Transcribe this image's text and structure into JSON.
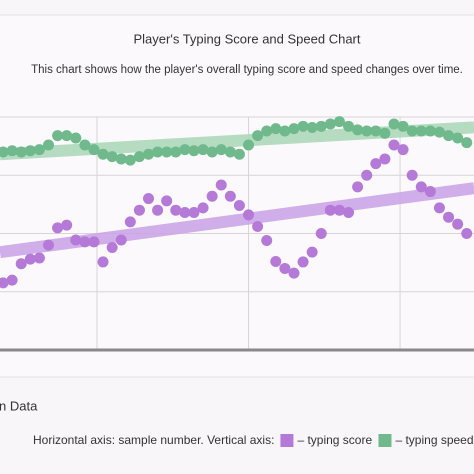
{
  "chart_data": {
    "type": "scatter",
    "title": "Player's Typing Score and Speed Chart",
    "subtitle": "This chart shows how the player's overall typing score and speed changes over time.",
    "caption": "Horizontal axis: sample number. Vertical axis:",
    "data_toggle": "n Data",
    "trendline": true,
    "x": [
      19,
      22,
      25,
      28,
      31,
      34,
      37,
      40,
      43,
      46,
      49,
      52,
      55,
      58,
      61,
      64,
      67,
      70,
      73,
      76,
      79,
      82,
      85,
      88,
      91,
      94,
      97,
      100,
      103,
      106,
      109,
      112,
      115,
      118,
      121,
      124,
      127,
      130,
      133,
      136,
      139,
      142,
      145,
      148,
      151,
      154,
      157,
      160,
      163,
      166,
      169,
      172
    ],
    "series": [
      {
        "name": "– typing score",
        "color": "#b57ad8",
        "trend_color": "#c9a2e6",
        "values": [
          28.8,
          30,
          37,
          39,
          39.5,
          45,
          52.4,
          53.6,
          47.2,
          46.4,
          46.4,
          37.8,
          44,
          47.2,
          55,
          60,
          65,
          60,
          64,
          60,
          59,
          59,
          61,
          66,
          70.8,
          66,
          62,
          58,
          53,
          47,
          38,
          35,
          33,
          37.8,
          42,
          50,
          60,
          60,
          59,
          70,
          75,
          80,
          82,
          88,
          86,
          75,
          70,
          68,
          61,
          57,
          54,
          50
        ]
      },
      {
        "name": "– typing speed.",
        "color": "#6fb98c",
        "trend_color": "#a9d7b8",
        "values": [
          85,
          85.5,
          85,
          85.5,
          86,
          88,
          92,
          92,
          91,
          88,
          86,
          84,
          83,
          82,
          81.5,
          83,
          84,
          85,
          85,
          85,
          86,
          85.5,
          86,
          85,
          86,
          85,
          84,
          88,
          92,
          94,
          95,
          94,
          95,
          96,
          95.5,
          96,
          97,
          98,
          96,
          94.5,
          94,
          94,
          93,
          97,
          96,
          94,
          94,
          94,
          93.5,
          92,
          91,
          89
        ]
      }
    ],
    "xlim": [
      18,
      174.4
    ],
    "xticks": [
      50,
      100,
      150
    ],
    "ylim": [
      0,
      100
    ],
    "yticks": [
      0,
      25,
      50,
      75,
      100
    ],
    "grid": true
  }
}
